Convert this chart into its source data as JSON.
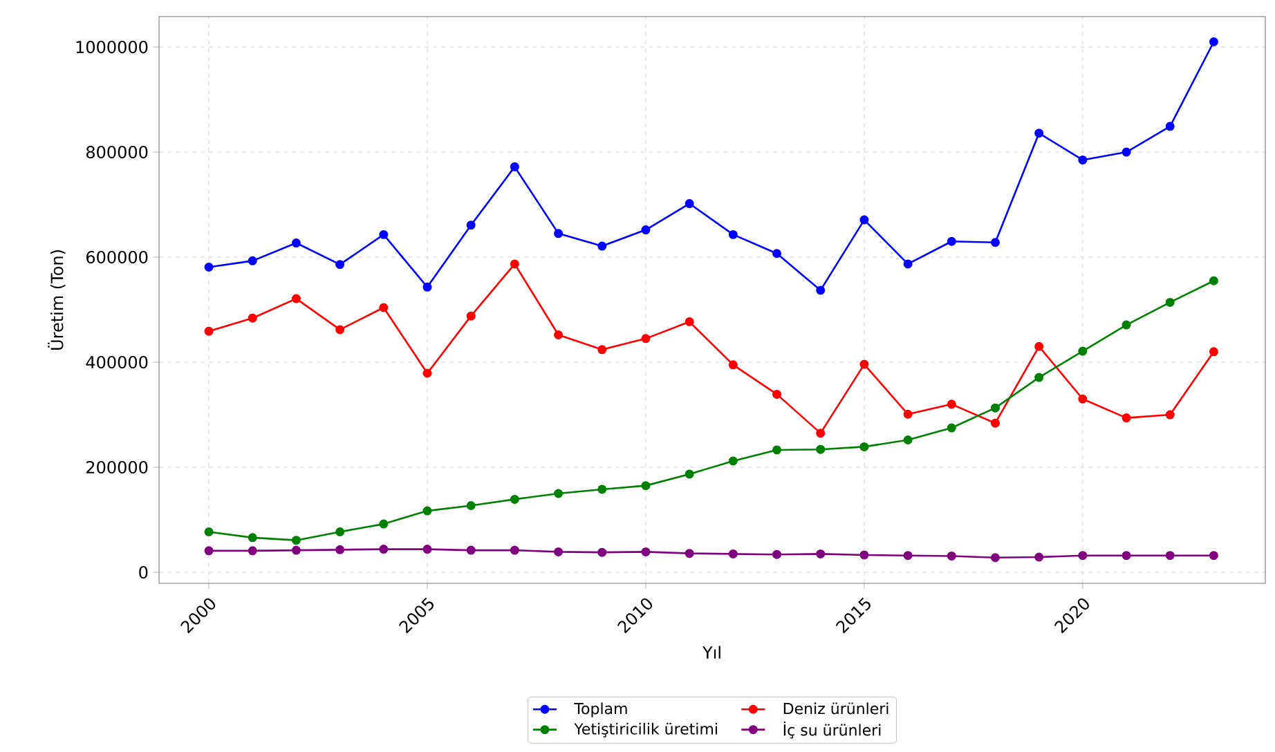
{
  "chart_data": {
    "type": "line",
    "xlabel": "Yıl",
    "ylabel": "Üretim (Ton)",
    "x": [
      2000,
      2001,
      2002,
      2003,
      2004,
      2005,
      2006,
      2007,
      2008,
      2009,
      2010,
      2011,
      2012,
      2013,
      2014,
      2015,
      2016,
      2017,
      2018,
      2019,
      2020,
      2021,
      2022,
      2023
    ],
    "series": [
      {
        "name": "Toplam",
        "color": "#0000ff",
        "values": [
          581000,
          593000,
          627000,
          586000,
          643000,
          543000,
          661000,
          772000,
          645000,
          621000,
          652000,
          702000,
          643000,
          607000,
          537000,
          671000,
          587000,
          630000,
          628000,
          836000,
          785000,
          800000,
          849000,
          1010000
        ]
      },
      {
        "name": "Deniz ürünleri",
        "color": "#ff0000",
        "values": [
          459000,
          484000,
          521000,
          462000,
          504000,
          379000,
          488000,
          587000,
          452000,
          424000,
          445000,
          477000,
          395000,
          339000,
          265000,
          396000,
          301000,
          320000,
          284000,
          430000,
          330000,
          294000,
          300000,
          420000
        ]
      },
      {
        "name": "Yetiştiricilik üretimi",
        "color": "#008000",
        "values": [
          77000,
          66000,
          61000,
          77000,
          92000,
          117000,
          127000,
          139000,
          150000,
          158000,
          165000,
          187000,
          212000,
          233000,
          234000,
          239000,
          252000,
          275000,
          313000,
          371000,
          421000,
          471000,
          514000,
          555000
        ]
      },
      {
        "name": "İç su ürünleri",
        "color": "#800080",
        "values": [
          41000,
          41000,
          42000,
          43000,
          44000,
          44000,
          42000,
          42000,
          39000,
          38000,
          39000,
          36000,
          35000,
          34000,
          35000,
          33000,
          32000,
          31000,
          28000,
          29000,
          32000,
          32000,
          32000,
          32000
        ]
      }
    ],
    "xlim": [
      1998.86,
      2024.18
    ],
    "ylim": [
      -21000,
      1058000
    ],
    "xticks": [
      2000,
      2005,
      2010,
      2015,
      2020
    ],
    "yticks": [
      0,
      200000,
      400000,
      600000,
      800000,
      1000000
    ],
    "grid": true,
    "legend": "bottom",
    "marker": "circle",
    "line_style": "solid"
  }
}
